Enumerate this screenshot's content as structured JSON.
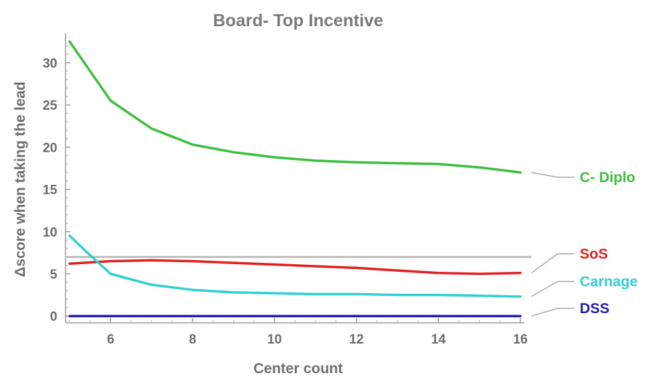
{
  "chart_data": {
    "type": "line",
    "title": "Board- Top Incentive",
    "xlabel": "Center count",
    "ylabel": "Δscore when taking the lead",
    "xlim": [
      4.9,
      16.1
    ],
    "ylim": [
      -0.8,
      33.5
    ],
    "xticks": [
      6,
      8,
      10,
      12,
      14,
      16
    ],
    "yticks": [
      0,
      5,
      10,
      15,
      20,
      25,
      30
    ],
    "grid": false,
    "legend": "right, end-of-line labels",
    "reference_line": {
      "y": 7.0,
      "color": "#c0c0c0"
    },
    "series": [
      {
        "name": "C- Diplo",
        "color": "#3cbf3c",
        "x": [
          5,
          6,
          7,
          8,
          9,
          10,
          11,
          12,
          13,
          14,
          15,
          16
        ],
        "y": [
          32.5,
          25.5,
          22.2,
          20.3,
          19.4,
          18.8,
          18.4,
          18.2,
          18.1,
          18.0,
          17.6,
          17.0
        ]
      },
      {
        "name": "SoS",
        "color": "#e02020",
        "x": [
          5,
          6,
          7,
          8,
          9,
          10,
          11,
          12,
          13,
          14,
          15,
          16
        ],
        "y": [
          6.2,
          6.5,
          6.6,
          6.5,
          6.3,
          6.1,
          5.9,
          5.7,
          5.4,
          5.1,
          5.0,
          5.1
        ]
      },
      {
        "name": "Carnage",
        "color": "#2fd0d0",
        "x": [
          5,
          5.5,
          6,
          7,
          8,
          9,
          10,
          11,
          12,
          13,
          14,
          15,
          16
        ],
        "y": [
          9.5,
          7.2,
          5.0,
          3.7,
          3.1,
          2.8,
          2.7,
          2.6,
          2.6,
          2.5,
          2.5,
          2.4,
          2.3
        ]
      },
      {
        "name": "DSS",
        "color": "#2020b0",
        "x": [
          5,
          16
        ],
        "y": [
          0,
          0
        ]
      }
    ]
  }
}
